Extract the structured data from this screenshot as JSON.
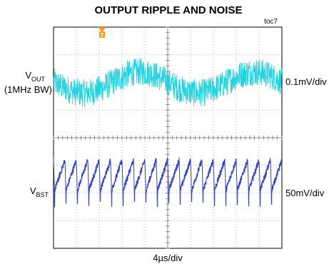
{
  "chart_data": {
    "type": "line",
    "title": "OUTPUT RIPPLE AND NOISE",
    "figure_id": "toc7",
    "xlabel": "4µs/div",
    "x_divisions": 10,
    "y_divisions": 8,
    "grid": true,
    "trigger_marker": "T",
    "series": [
      {
        "name_main": "V",
        "name_sub": "OUT",
        "name_note": "(1MHz BW)",
        "scale": "0.1mV/div",
        "color": "#22d3e0",
        "waveform": "noise ripple",
        "center_div": 2.0,
        "minima_div_from_left": [
          2.3,
          7.7
        ],
        "maxima_div_from_left": [
          0.2,
          3.8,
          9.9
        ],
        "ripple_peak_to_peak_divs": 1.1,
        "noise_peak_to_peak_divs": 1.0
      },
      {
        "name_main": "V",
        "name_sub": "BST",
        "scale": "50mV/div",
        "color": "#2b3fd6",
        "waveform": "sawtooth with switching spikes",
        "center_div": 5.5,
        "cycles_in_window": 20,
        "peak_to_peak_divs": 1.4
      }
    ]
  }
}
